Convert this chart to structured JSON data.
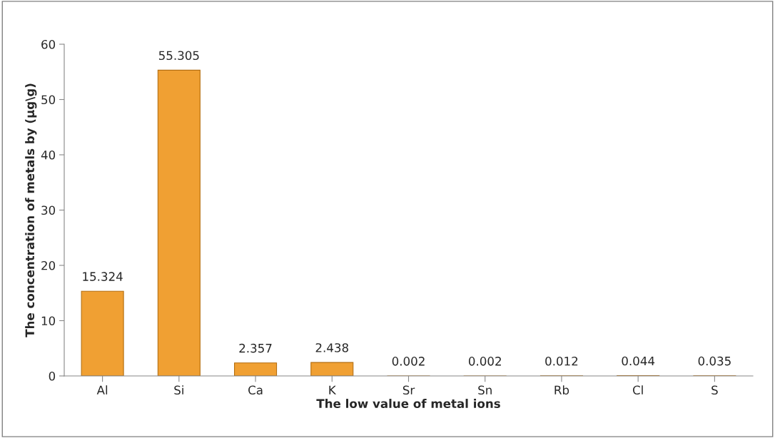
{
  "chart_data": {
    "type": "bar",
    "xlabel": "The low value of metal ions",
    "ylabel": "The concentration of metals by (µg\\g)",
    "categories": [
      "Al",
      "Si",
      "Ca",
      "K",
      "Sr",
      "Sn",
      "Rb",
      "Cl",
      "S"
    ],
    "values": [
      15.324,
      55.305,
      2.357,
      2.438,
      0.002,
      0.002,
      0.012,
      0.044,
      0.035
    ],
    "color": "#f0a033",
    "ylim": [
      0,
      60
    ],
    "yticks": [
      0,
      10,
      20,
      30,
      40,
      50,
      60
    ],
    "data_labels": true,
    "grid": false
  }
}
